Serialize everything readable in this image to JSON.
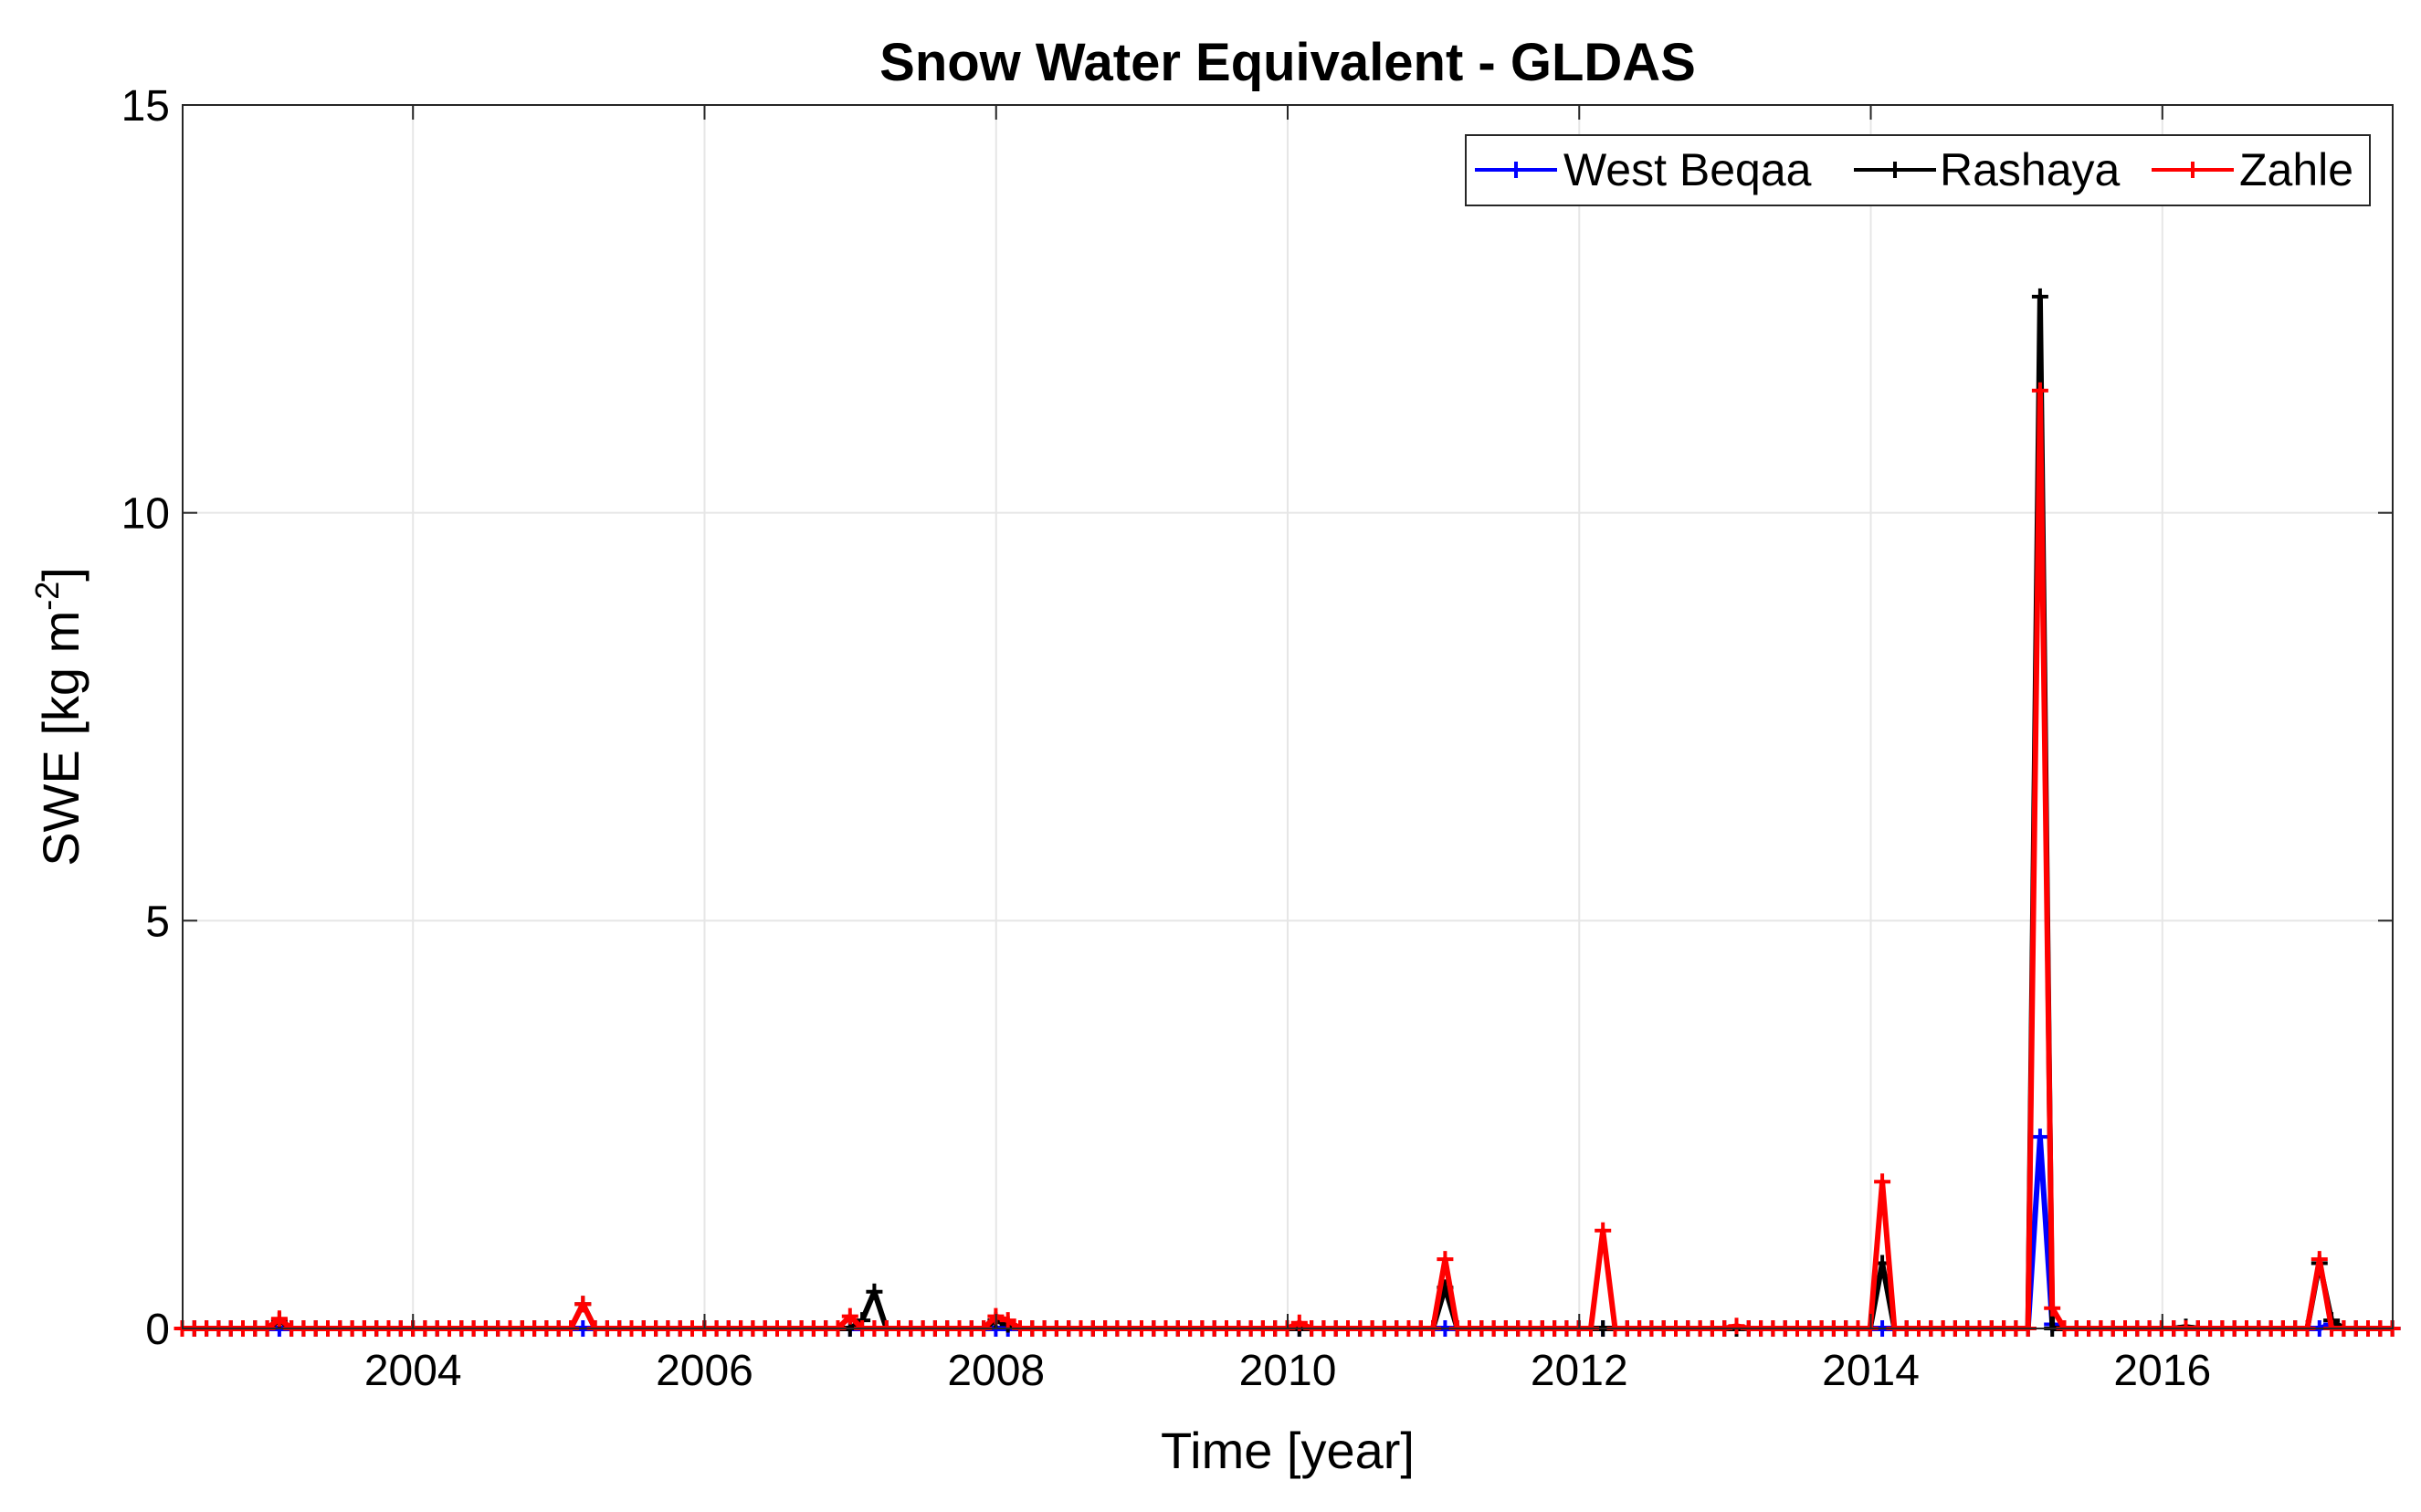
{
  "chart_data": {
    "type": "line",
    "title": "Snow Water Equivalent - GLDAS",
    "xlabel": "Time [year]",
    "ylabel": "SWE [kg m",
    "ylabel_sup": "-2",
    "ylabel_close": "]",
    "xlim": [
      2002.42,
      2017.58
    ],
    "ylim": [
      0,
      15
    ],
    "grid": true,
    "legend_position": "top-right",
    "xticks": [
      2004,
      2006,
      2008,
      2010,
      2012,
      2014,
      2016
    ],
    "xtick_labels": [
      "2004",
      "2006",
      "2008",
      "2010",
      "2012",
      "2014",
      "2016"
    ],
    "yticks": [
      0,
      5,
      10,
      15
    ],
    "ytick_labels": [
      "0",
      "5",
      "10",
      "15"
    ],
    "x_start": 2002.4167,
    "x_step": 0.0833,
    "n_points": 183,
    "series": [
      {
        "name": "West Beqaa",
        "color": "#0000ff",
        "peaks": [
          {
            "i": 153,
            "v": 2.35
          },
          {
            "i": 154,
            "v": 0.05
          },
          {
            "i": 177,
            "v": 0.05
          }
        ]
      },
      {
        "name": "Rashaya",
        "color": "#000000",
        "peaks": [
          {
            "i": 8,
            "v": 0.1
          },
          {
            "i": 33,
            "v": 0.3
          },
          {
            "i": 56,
            "v": 0.1
          },
          {
            "i": 57,
            "v": 0.45
          },
          {
            "i": 67,
            "v": 0.1
          },
          {
            "i": 68,
            "v": 0.05
          },
          {
            "i": 104,
            "v": 0.5
          },
          {
            "i": 140,
            "v": 0.8
          },
          {
            "i": 153,
            "v": 12.65
          },
          {
            "i": 165,
            "v": 0.02
          },
          {
            "i": 176,
            "v": 0.8
          },
          {
            "i": 177,
            "v": 0.1
          }
        ]
      },
      {
        "name": "Zahle",
        "color": "#ff0000",
        "peaks": [
          {
            "i": 8,
            "v": 0.12
          },
          {
            "i": 33,
            "v": 0.3
          },
          {
            "i": 55,
            "v": 0.15
          },
          {
            "i": 67,
            "v": 0.15
          },
          {
            "i": 68,
            "v": 0.1
          },
          {
            "i": 92,
            "v": 0.07
          },
          {
            "i": 104,
            "v": 0.85
          },
          {
            "i": 117,
            "v": 1.2
          },
          {
            "i": 128,
            "v": 0.03
          },
          {
            "i": 140,
            "v": 1.8
          },
          {
            "i": 153,
            "v": 11.5
          },
          {
            "i": 154,
            "v": 0.25
          },
          {
            "i": 176,
            "v": 0.85
          }
        ]
      }
    ]
  }
}
